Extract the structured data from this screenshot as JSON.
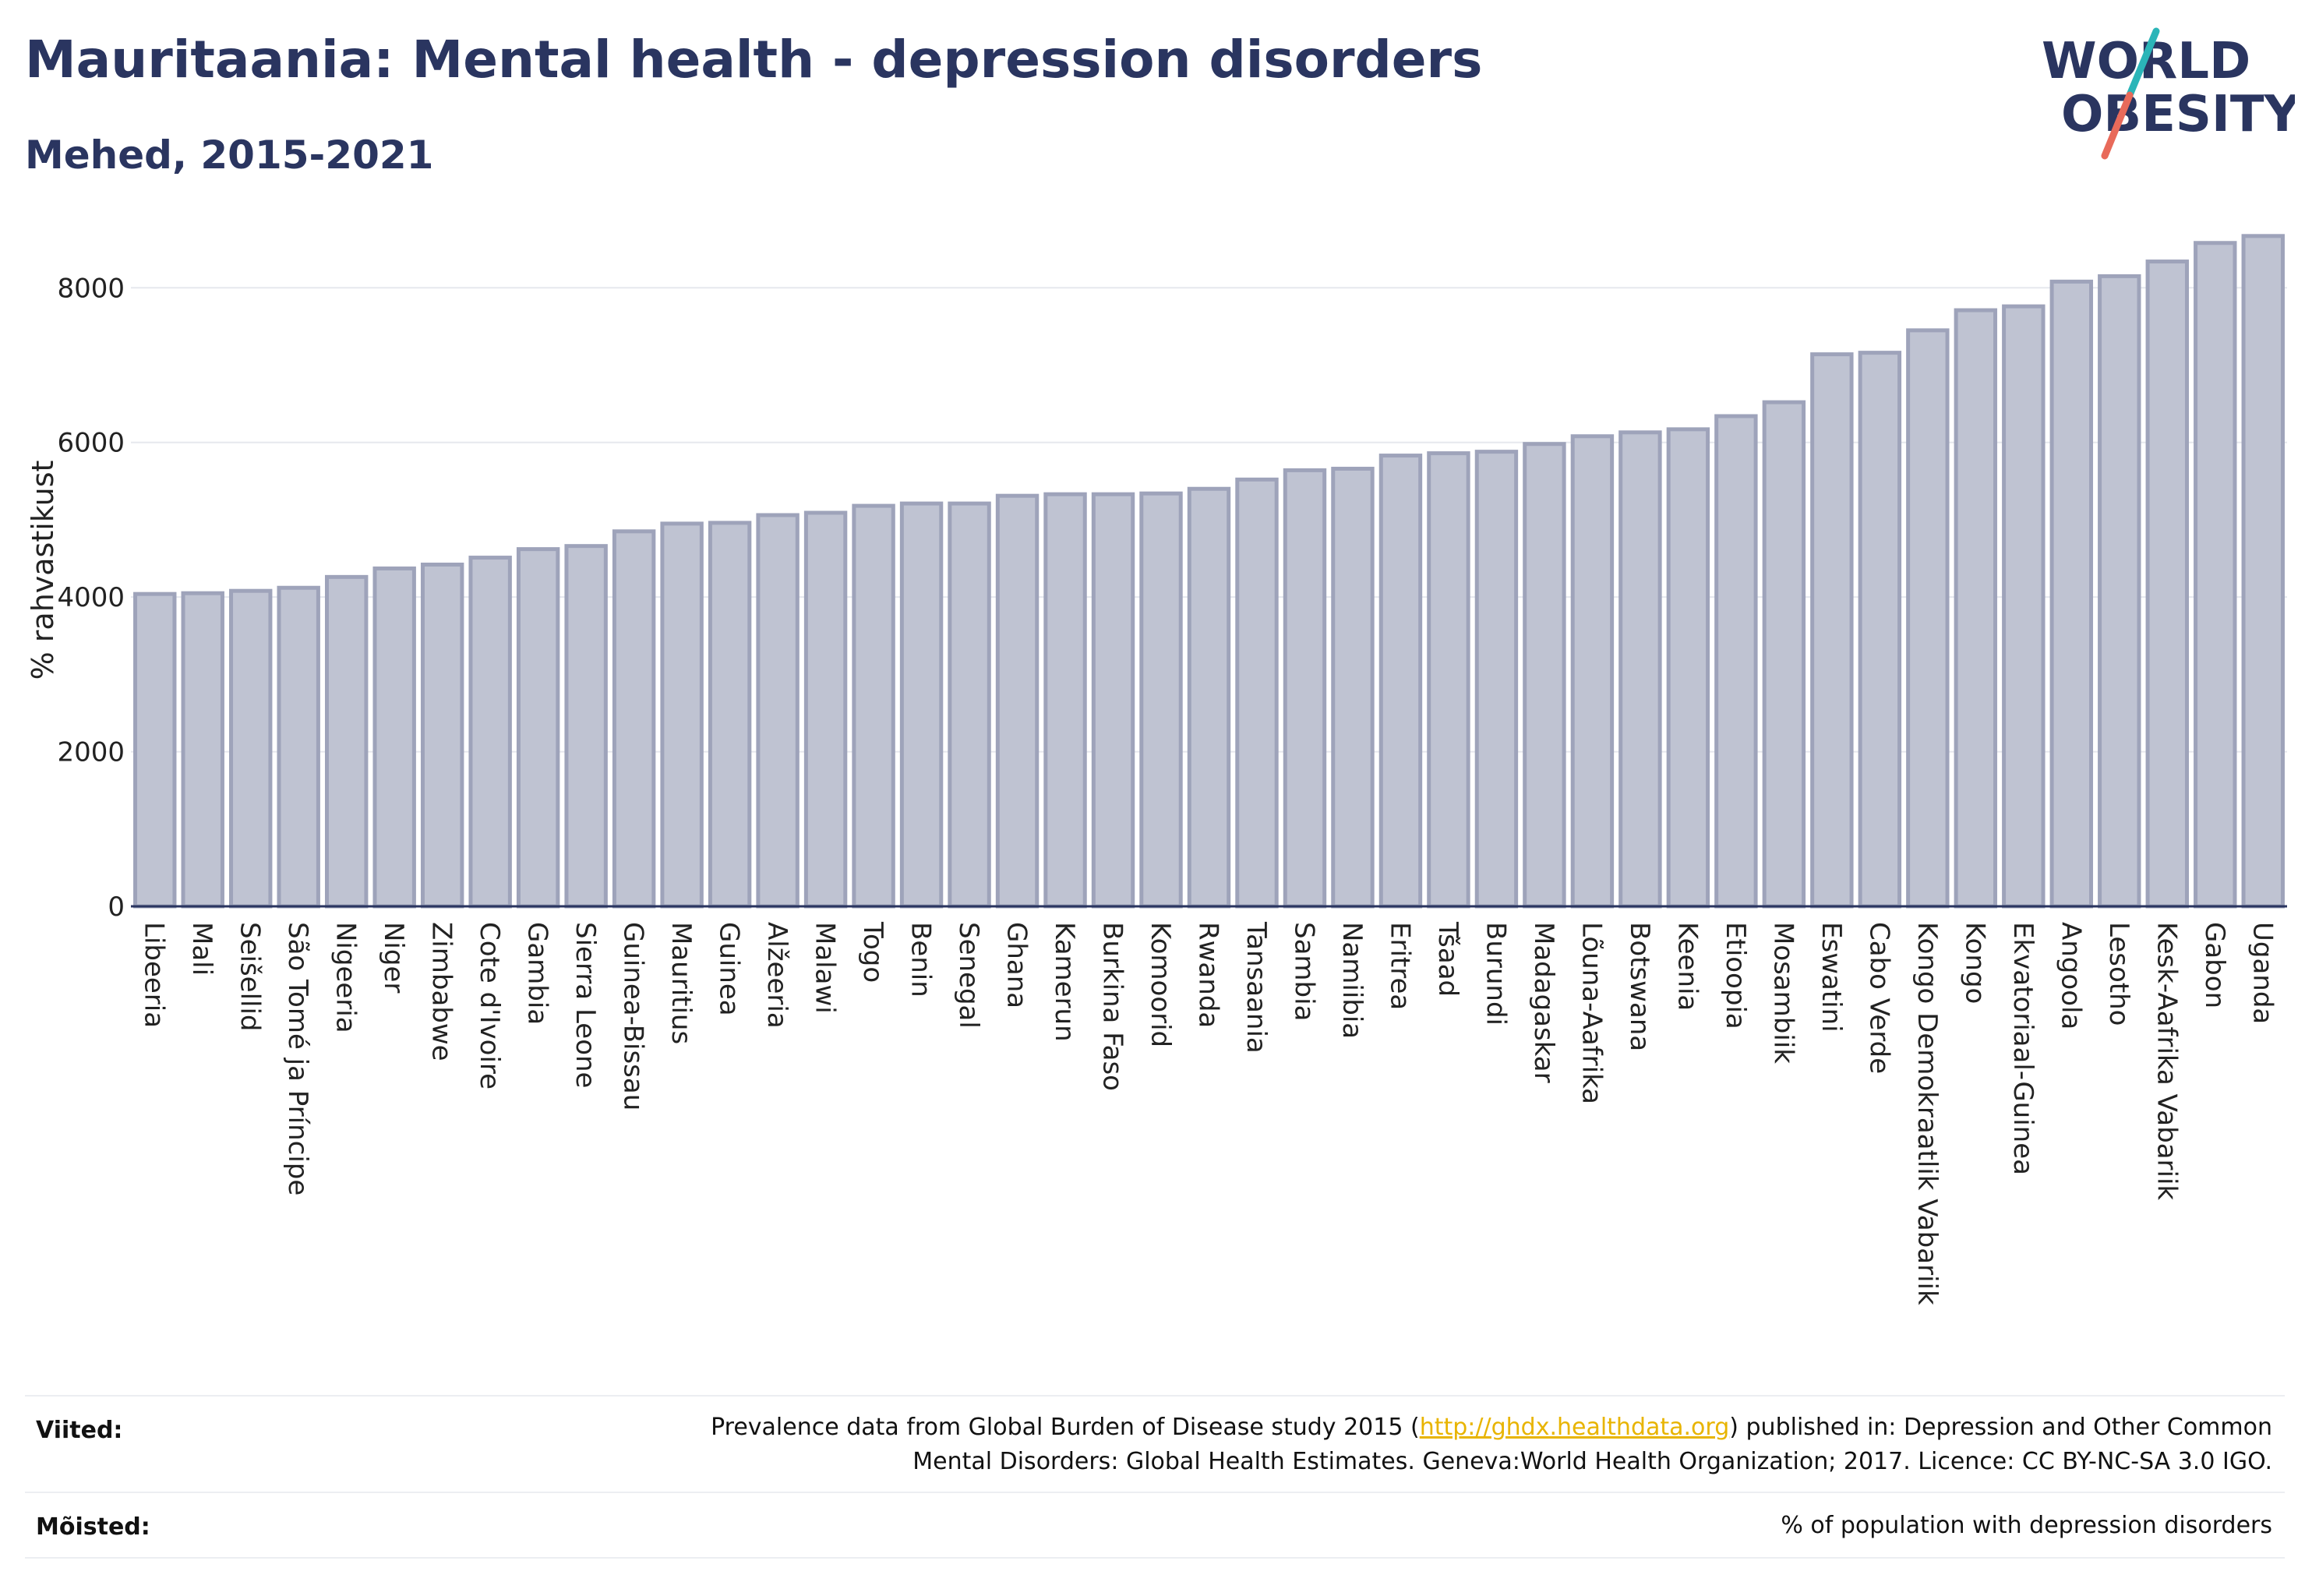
{
  "header": {
    "title": "Mauritaania: Mental health - depression disorders",
    "subtitle": "Mehed, 2015-2021"
  },
  "logo": {
    "line1": "WORLD",
    "line2": "OBESITY",
    "colors": {
      "text": "#2a3560",
      "slash_top": "#2bb5b8",
      "slash_bottom": "#e86a5a"
    }
  },
  "chart_data": {
    "type": "bar",
    "ylabel": "% rahvastikust",
    "xlabel": "",
    "ylim": [
      0,
      8900
    ],
    "yticks": [
      0,
      2000,
      4000,
      6000,
      8000
    ],
    "grid": true,
    "bar_color": "#bfc3d2",
    "bar_edge_color": "#9ea3ba",
    "categories": [
      "Libeeria",
      "Mali",
      "Seišellid",
      "São Tomé ja Príncipe",
      "Nigeeria",
      "Niger",
      "Zimbabwe",
      "Cote d'Ivoire",
      "Gambia",
      "Sierra Leone",
      "Guinea-Bissau",
      "Mauritius",
      "Guinea",
      "Alžeeria",
      "Malawi",
      "Togo",
      "Benin",
      "Senegal",
      "Ghana",
      "Kamerun",
      "Burkina Faso",
      "Komoorid",
      "Rwanda",
      "Tansaania",
      "Sambia",
      "Namiibia",
      "Eritrea",
      "Tšaad",
      "Burundi",
      "Madagaskar",
      "Lõuna-Aafrika",
      "Botswana",
      "Keenia",
      "Etioopia",
      "Mosambiik",
      "Eswatini",
      "Cabo Verde",
      "Kongo Demokraatlik Vabariik",
      "Kongo",
      "Ekvatoriaal-Guinea",
      "Angoola",
      "Lesotho",
      "Kesk-Aafrika Vabariik",
      "Gabon",
      "Uganda"
    ],
    "values": [
      4040,
      4050,
      4080,
      4120,
      4260,
      4370,
      4420,
      4510,
      4620,
      4660,
      4850,
      4950,
      4960,
      5060,
      5090,
      5180,
      5210,
      5210,
      5310,
      5330,
      5330,
      5340,
      5400,
      5520,
      5640,
      5660,
      5830,
      5860,
      5880,
      5980,
      6080,
      6130,
      6170,
      6340,
      6520,
      7140,
      7160,
      7450,
      7710,
      7760,
      8080,
      8150,
      8340,
      8580,
      8670
    ]
  },
  "footer": {
    "sources_label": "Viited:",
    "sources_line1_pre": "Prevalence data from Global Burden of Disease study 2015 (",
    "sources_link": "http://ghdx.healthdata.org",
    "sources_line1_post": ") published in: Depression and Other Common",
    "sources_line2": "Mental Disorders: Global Health Estimates. Geneva:World Health Organization; 2017. Licence: CC BY-NC-SA 3.0 IGO.",
    "definitions_label": "Mõisted:",
    "definitions_text": "% of population with depression disorders"
  }
}
